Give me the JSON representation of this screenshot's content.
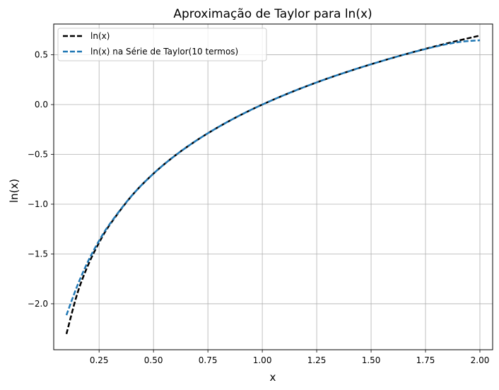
{
  "chart_data": {
    "type": "line",
    "title": "Aproximação de Taylor para ln(x)",
    "xlabel": "x",
    "ylabel": "ln(x)",
    "xlim": [
      0.0415,
      2.0585
    ],
    "ylim": [
      -2.4615,
      0.8089
    ],
    "grid": true,
    "legend_position": "top-left",
    "x_ticks": [
      0.25,
      0.5,
      0.75,
      1.0,
      1.25,
      1.5,
      1.75,
      2.0
    ],
    "x_tick_labels": [
      "0.25",
      "0.50",
      "0.75",
      "1.00",
      "1.25",
      "1.50",
      "1.75",
      "2.00"
    ],
    "y_ticks": [
      -2.0,
      -1.5,
      -1.0,
      -0.5,
      0.0,
      0.5
    ],
    "y_tick_labels": [
      "−2.0",
      "−1.5",
      "−1.0",
      "−0.5",
      "0.0",
      "0.5"
    ],
    "x": [
      0.1,
      0.15,
      0.2,
      0.25,
      0.3,
      0.4,
      0.5,
      0.6,
      0.7,
      0.8,
      0.9,
      1.0,
      1.1,
      1.2,
      1.3,
      1.4,
      1.5,
      1.6,
      1.7,
      1.8,
      1.9,
      2.0
    ],
    "series": [
      {
        "name": "ln(x)",
        "color": "#000000",
        "values": [
          -2.303,
          -1.897,
          -1.609,
          -1.386,
          -1.204,
          -0.916,
          -0.693,
          -0.511,
          -0.357,
          -0.223,
          -0.105,
          0.0,
          0.095,
          0.182,
          0.262,
          0.336,
          0.405,
          0.47,
          0.531,
          0.588,
          0.642,
          0.693
        ]
      },
      {
        "name": "ln(x) na Série de Taylor(10 termos)",
        "color": "#1f77b4",
        "values": [
          -2.114,
          -1.818,
          -1.571,
          -1.367,
          -1.196,
          -0.915,
          -0.693,
          -0.511,
          -0.357,
          -0.223,
          -0.105,
          0.0,
          0.095,
          0.182,
          0.262,
          0.336,
          0.405,
          0.47,
          0.53,
          0.584,
          0.627,
          0.646
        ]
      }
    ]
  }
}
